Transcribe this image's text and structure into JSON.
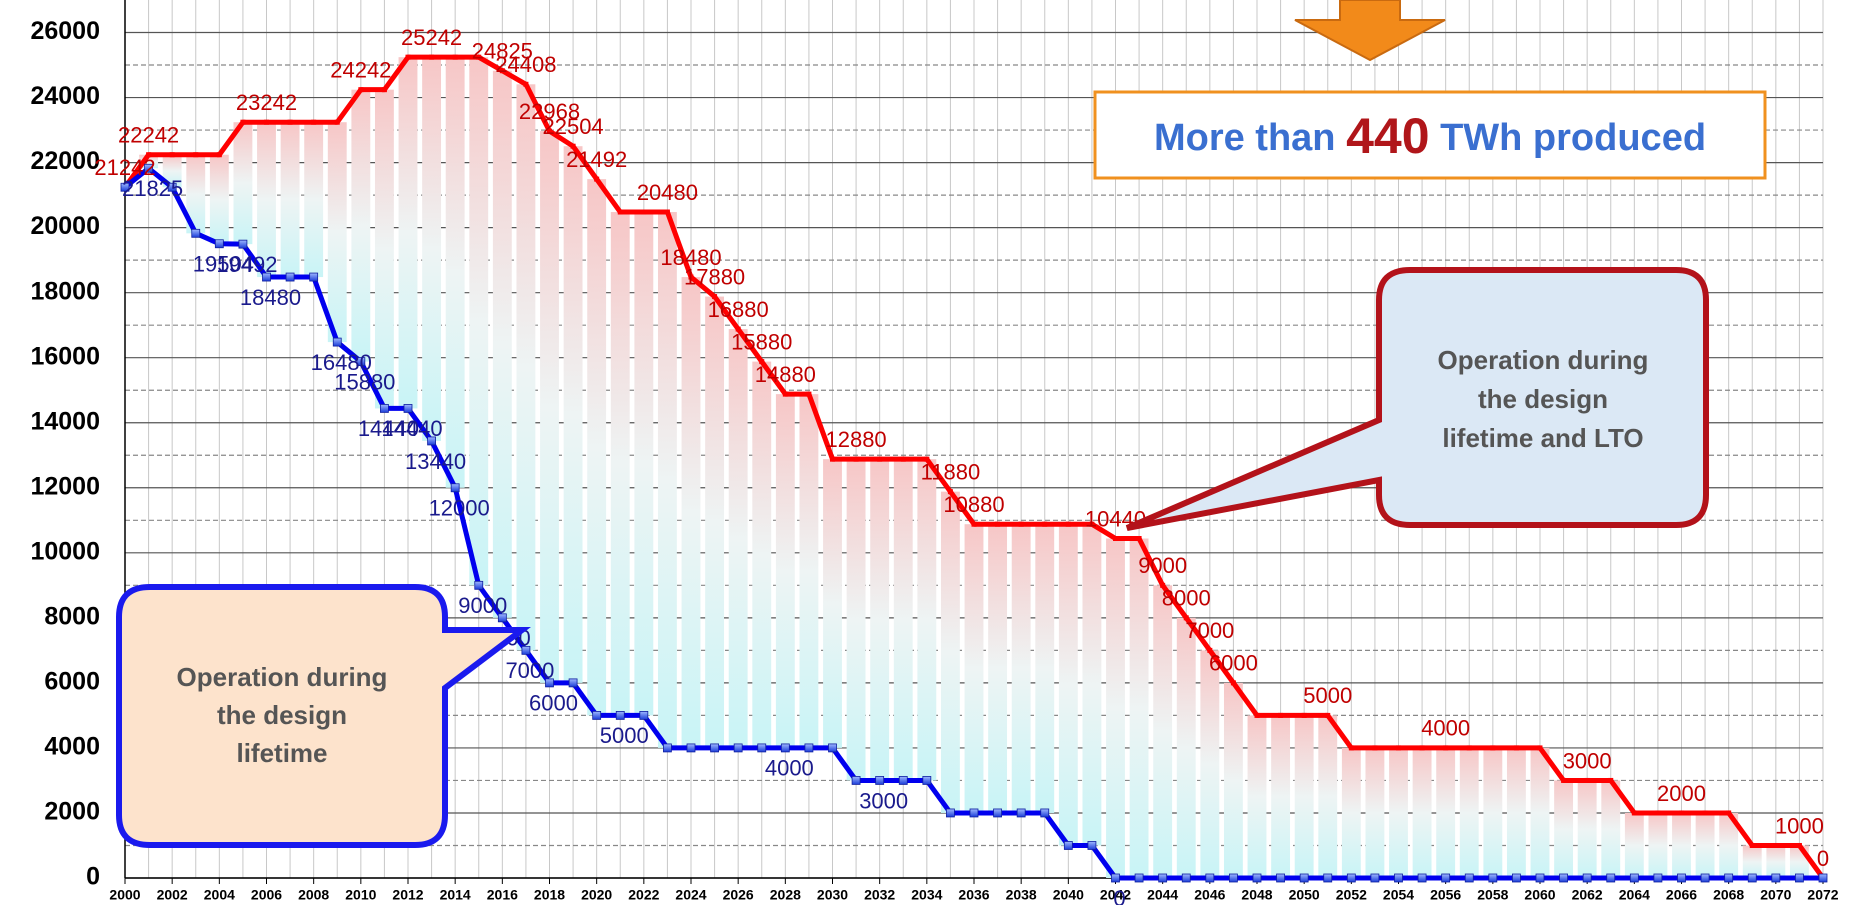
{
  "chart_data": {
    "type": "line",
    "xlim": [
      2000,
      2072
    ],
    "xticks": [
      2000,
      2002,
      2004,
      2006,
      2008,
      2010,
      2012,
      2014,
      2016,
      2018,
      2020,
      2022,
      2024,
      2026,
      2028,
      2030,
      2032,
      2034,
      2036,
      2038,
      2040,
      2042,
      2044,
      2046,
      2048,
      2050,
      2052,
      2054,
      2056,
      2058,
      2060,
      2062,
      2064,
      2066,
      2068,
      2070,
      2072
    ],
    "ylim": [
      0,
      27000
    ],
    "yticks": [
      0,
      2000,
      4000,
      6000,
      8000,
      10000,
      12000,
      14000,
      16000,
      18000,
      20000,
      22000,
      24000,
      26000
    ],
    "yminor": [
      1000,
      3000,
      5000,
      7000,
      9000,
      11000,
      13000,
      15000,
      17000,
      19000,
      21000,
      23000,
      25000
    ],
    "grid": true,
    "series": [
      {
        "color": "#ff0000",
        "values": [
          21242,
          22242,
          22242,
          22242,
          22242,
          23242,
          23242,
          23242,
          23242,
          23242,
          24242,
          24242,
          25242,
          25242,
          25242,
          25242,
          24825,
          24408,
          22968,
          22504,
          21492,
          20480,
          20480,
          20480,
          18480,
          17880,
          16880,
          15880,
          14880,
          14880,
          12880,
          12880,
          12880,
          12880,
          12880,
          11880,
          10880,
          10880,
          10880,
          10880,
          10880,
          10880,
          10440,
          10440,
          9000,
          8000,
          7000,
          6000,
          5000,
          5000,
          5000,
          5000,
          4000,
          4000,
          4000,
          4000,
          4000,
          4000,
          4000,
          4000,
          4000,
          3000,
          3000,
          3000,
          2000,
          2000,
          2000,
          2000,
          2000,
          1000,
          1000,
          1000,
          0
        ],
        "value_labels": [
          "21242",
          "22242",
          null,
          null,
          null,
          null,
          "23242",
          null,
          null,
          null,
          "24242",
          null,
          null,
          "25242",
          null,
          null,
          "24825",
          "24408",
          "22968",
          "22504",
          "21492",
          null,
          null,
          "20480",
          "18480",
          "17880",
          "16880",
          "15880",
          "14880",
          null,
          null,
          "12880",
          null,
          null,
          null,
          "11880",
          "10880",
          null,
          null,
          null,
          null,
          null,
          "10440",
          null,
          "9000",
          "8000",
          "7000",
          "6000",
          null,
          null,
          null,
          "5000",
          null,
          null,
          null,
          null,
          "4000",
          null,
          null,
          null,
          null,
          null,
          "3000",
          null,
          null,
          null,
          "2000",
          null,
          null,
          null,
          null,
          "1000",
          "0"
        ]
      },
      {
        "color": "#0000ee",
        "values": [
          21242,
          21825,
          21242,
          19825,
          19504,
          19492,
          18480,
          18480,
          18480,
          16480,
          15880,
          14440,
          14440,
          13440,
          12000,
          9000,
          8000,
          7000,
          6000,
          6000,
          5000,
          5000,
          5000,
          4000,
          4000,
          4000,
          4000,
          4000,
          4000,
          4000,
          4000,
          3000,
          3000,
          3000,
          3000,
          2000,
          2000,
          2000,
          2000,
          2000,
          1000,
          1000,
          0,
          0,
          0,
          0,
          0,
          0,
          0,
          0,
          0,
          0,
          0,
          0,
          0,
          0,
          0,
          0,
          0,
          0,
          0,
          0,
          0,
          0,
          0,
          0,
          0,
          0,
          0,
          0,
          0,
          0,
          0
        ],
        "value_labels": [
          null,
          "21825",
          null,
          null,
          "19504",
          "19492",
          "18480",
          null,
          null,
          "16480",
          "15880",
          "14440",
          "14440",
          "13440",
          "12000",
          "9000",
          "8000",
          "7000",
          "6000",
          null,
          null,
          "5000",
          null,
          null,
          null,
          null,
          null,
          null,
          "4000",
          null,
          null,
          null,
          "3000",
          null,
          null,
          null,
          null,
          null,
          null,
          null,
          null,
          null,
          "0",
          null,
          null,
          null,
          null,
          null,
          null,
          null,
          null,
          null,
          null,
          null,
          null,
          null,
          null,
          null,
          null,
          null,
          null,
          null,
          null,
          null,
          null,
          null,
          null,
          null,
          null,
          null,
          null,
          null,
          null
        ]
      }
    ],
    "annotations": {
      "total": {
        "before": "More than",
        "highlight": "440",
        "after": "TWh produced"
      },
      "design": [
        "Operation during",
        "the design",
        "lifetime"
      ],
      "lto": [
        "Operation during",
        "the design",
        "lifetime and LTO"
      ]
    }
  }
}
